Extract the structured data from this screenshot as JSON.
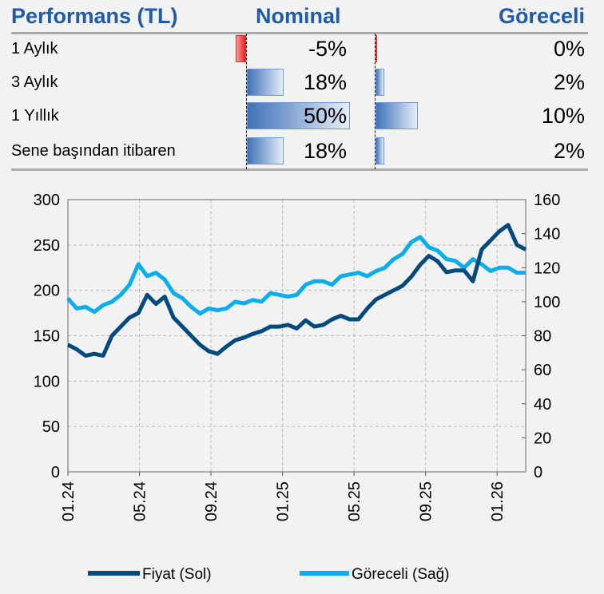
{
  "table": {
    "title": "Performans (TL)",
    "col_nominal": "Nominal",
    "col_relative": "Göreceli",
    "rows": [
      {
        "label": "1 Aylık",
        "nominal": -5,
        "nominal_text": "-5%",
        "relative": 0,
        "relative_text": "0%"
      },
      {
        "label": "3 Aylık",
        "nominal": 18,
        "nominal_text": "18%",
        "relative": 2,
        "relative_text": "2%"
      },
      {
        "label": "1 Yıllık",
        "nominal": 50,
        "nominal_text": "50%",
        "relative": 10,
        "relative_text": "10%"
      },
      {
        "label": "Sene başından itibaren",
        "nominal": 18,
        "nominal_text": "18%",
        "relative": 2,
        "relative_text": "2%"
      }
    ],
    "colors": {
      "header": "#1f5ba8",
      "positive_bar": "#3f72b8",
      "negative_bar": "#e02020"
    }
  },
  "chart_data": {
    "type": "line",
    "x_tick_labels": [
      "01.24",
      "05.24",
      "09.24",
      "01.25",
      "05.25",
      "09.25",
      "01.26"
    ],
    "x_range_months": [
      0,
      25.6
    ],
    "left_axis": {
      "ylim": [
        0,
        300
      ],
      "ticks": [
        "0",
        "50",
        "100",
        "150",
        "200",
        "250",
        "300"
      ]
    },
    "right_axis": {
      "ylim": [
        0,
        160
      ],
      "ticks": [
        "0",
        "20",
        "40",
        "60",
        "80",
        "100",
        "120",
        "140",
        "160"
      ]
    },
    "grid": true,
    "legend_position": "bottom",
    "series": [
      {
        "name": "Fiyat (Sol)",
        "axis": "left",
        "color": "#004a80",
        "values": [
          140,
          135,
          128,
          130,
          128,
          150,
          160,
          170,
          175,
          195,
          185,
          193,
          170,
          160,
          150,
          140,
          133,
          130,
          138,
          145,
          148,
          152,
          155,
          160,
          160,
          162,
          158,
          167,
          160,
          162,
          168,
          172,
          168,
          168,
          180,
          190,
          195,
          200,
          205,
          215,
          228,
          238,
          232,
          220,
          222,
          222,
          210,
          245,
          255,
          265,
          272,
          250,
          245
        ]
      },
      {
        "name": "Göreceli (Sağ)",
        "axis": "right",
        "color": "#0aaeef",
        "values": [
          102,
          96,
          97,
          94,
          98,
          100,
          104,
          110,
          122,
          115,
          117,
          113,
          105,
          102,
          97,
          93,
          96,
          95,
          96,
          100,
          99,
          101,
          100,
          105,
          104,
          103,
          104,
          110,
          112,
          112,
          110,
          115,
          116,
          117,
          115,
          118,
          120,
          125,
          128,
          135,
          138,
          132,
          130,
          125,
          124,
          120,
          125,
          122,
          118,
          120,
          120,
          117,
          117
        ]
      }
    ]
  }
}
